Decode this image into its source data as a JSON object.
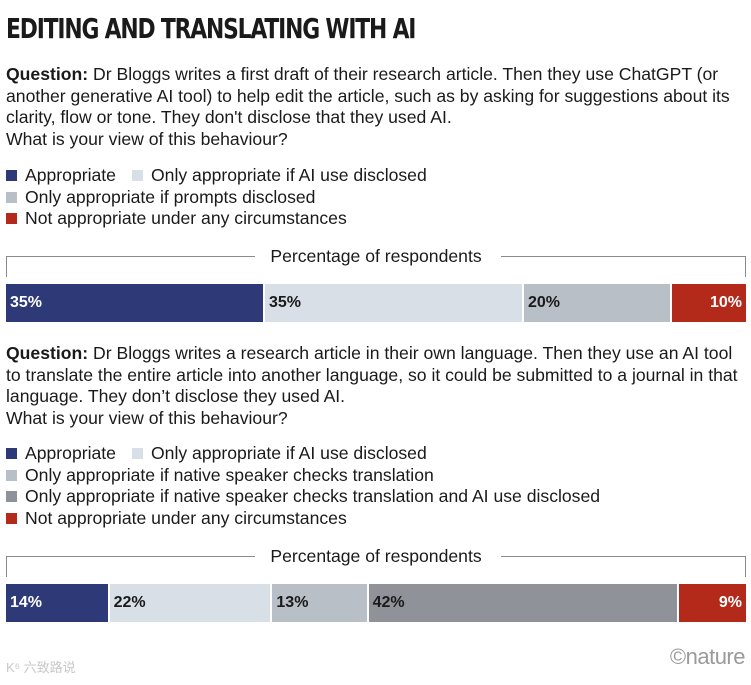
{
  "title": "EDITING AND TRANSLATING WITH AI",
  "footer": {
    "brand": "©nature",
    "watermark": "K⁶ 六致路说"
  },
  "colors": {
    "appropriate": "#2e3a78",
    "disclosed": "#d8dfe6",
    "prompts": "#b9bfc6",
    "native": "#b9bfc6",
    "native_disclosed": "#8f9399",
    "not_appropriate": "#b42a1a"
  },
  "chart_data": [
    {
      "type": "bar",
      "orientation": "stacked-horizontal",
      "question_label": "Question:",
      "question_text": "Dr Bloggs writes a first draft of their research article. Then they use ChatGPT (or another generative AI tool) to help edit the article, such as by asking for suggestions about its clarity, flow or tone. They don't disclose that they used AI.",
      "question_prompt": "What is your view of this behaviour?",
      "axis_label": "Percentage of respondents",
      "series": [
        {
          "name": "Appropriate",
          "value": 35,
          "label": "35%",
          "color": "#2e3a78",
          "text_color": "#ffffff",
          "align": "left"
        },
        {
          "name": "Only appropriate if AI use disclosed",
          "value": 35,
          "label": "35%",
          "color": "#d8dfe6",
          "text_color": "#1a1a1a",
          "align": "left"
        },
        {
          "name": "Only appropriate if prompts disclosed",
          "value": 20,
          "label": "20%",
          "color": "#b9bfc6",
          "text_color": "#1a1a1a",
          "align": "left"
        },
        {
          "name": "Not appropriate under any circumstances",
          "value": 10,
          "label": "10%",
          "color": "#b42a1a",
          "text_color": "#ffffff",
          "align": "right"
        }
      ]
    },
    {
      "type": "bar",
      "orientation": "stacked-horizontal",
      "question_label": "Question:",
      "question_text": "Dr Bloggs writes a research article in their own language. Then they use an AI tool to translate the entire article into another language, so it could be submitted to a journal in that language. They don’t disclose they used AI.",
      "question_prompt": "What is your view of this behaviour?",
      "axis_label": "Percentage of respondents",
      "series": [
        {
          "name": "Appropriate",
          "value": 14,
          "label": "14%",
          "color": "#2e3a78",
          "text_color": "#ffffff",
          "align": "left"
        },
        {
          "name": "Only appropriate if AI use disclosed",
          "value": 22,
          "label": "22%",
          "color": "#d8dfe6",
          "text_color": "#1a1a1a",
          "align": "left"
        },
        {
          "name": "Only appropriate if native speaker checks translation",
          "value": 13,
          "label": "13%",
          "color": "#b9bfc6",
          "text_color": "#1a1a1a",
          "align": "left"
        },
        {
          "name": "Only appropriate if native speaker checks translation and AI use disclosed",
          "value": 42,
          "label": "42%",
          "color": "#8f9399",
          "text_color": "#1a1a1a",
          "align": "left"
        },
        {
          "name": "Not appropriate under any circumstances",
          "value": 9,
          "label": "9%",
          "color": "#b42a1a",
          "text_color": "#ffffff",
          "align": "right"
        }
      ]
    }
  ]
}
